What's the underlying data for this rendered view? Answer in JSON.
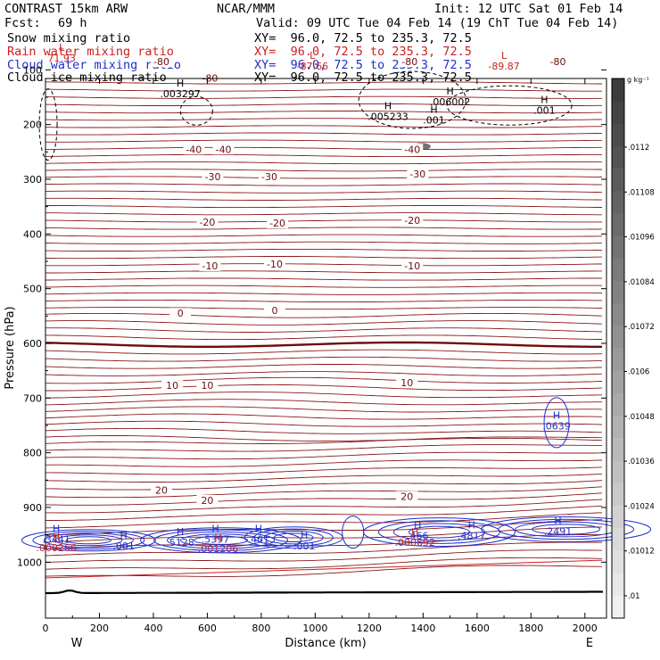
{
  "header": {
    "title": "CONTRAST 15km ARW",
    "org": "NCAR/MMM",
    "init": "Init: 12 UTC Sat 01 Feb 14",
    "fcst_label": "Fcst:",
    "fcst_value": "69 h",
    "valid": "Valid: 09 UTC Tue 04 Feb 14 (19 ChT Tue 04 Feb 14)"
  },
  "fields": [
    {
      "name": "Snow mixing ratio",
      "xy": "XY=  96.0, 72.5 to 235.3, 72.5",
      "color": "#000000"
    },
    {
      "name": "Rain water mixing ratio",
      "xy": "XY=  96.0, 72.5 to 235.3, 72.5",
      "color": "#cc1f1f"
    },
    {
      "name": "Cloud water mixing ratio",
      "xy": "XY=  96.0, 72.5 to 235.3, 72.5",
      "color": "#1f2fcc"
    },
    {
      "name": "Cloud ice mixing ratio",
      "xy": "XY=  96.0, 72.5 to 235.3, 72.5",
      "color": "#000000"
    }
  ],
  "chart_data": {
    "type": "contour-cross-section",
    "xlabel": "Distance (km)",
    "ylabel": "Pressure (hPa)",
    "xlim": [
      0,
      2080
    ],
    "ylim": [
      1050,
      50
    ],
    "x_ticks": [
      0,
      200,
      400,
      600,
      800,
      1000,
      1200,
      1400,
      1600,
      1800,
      2000
    ],
    "y_ticks": [
      100,
      200,
      300,
      400,
      500,
      600,
      700,
      800,
      900,
      1000
    ],
    "endpoints": {
      "left": "W",
      "right": "E"
    },
    "temperature_labels": [
      {
        "text": "-80",
        "x": 430,
        "p": 85
      },
      {
        "text": "-80",
        "x": 1350,
        "p": 85
      },
      {
        "text": "-80",
        "x": 1900,
        "p": 85
      },
      {
        "text": "-80",
        "x": 610,
        "p": 115
      },
      {
        "text": "-40",
        "x": 550,
        "p": 245
      },
      {
        "text": "-40",
        "x": 660,
        "p": 245
      },
      {
        "text": "-40",
        "x": 1360,
        "p": 245
      },
      {
        "text": "-30",
        "x": 620,
        "p": 295
      },
      {
        "text": "-30",
        "x": 830,
        "p": 295
      },
      {
        "text": "-30",
        "x": 1380,
        "p": 290
      },
      {
        "text": "-20",
        "x": 600,
        "p": 378
      },
      {
        "text": "-20",
        "x": 860,
        "p": 380
      },
      {
        "text": "-20",
        "x": 1360,
        "p": 375
      },
      {
        "text": "-10",
        "x": 610,
        "p": 458
      },
      {
        "text": "-10",
        "x": 850,
        "p": 455
      },
      {
        "text": "-10",
        "x": 1360,
        "p": 458
      },
      {
        "text": "0",
        "x": 500,
        "p": 545
      },
      {
        "text": "0",
        "x": 850,
        "p": 540
      },
      {
        "text": "10",
        "x": 470,
        "p": 677
      },
      {
        "text": "10",
        "x": 600,
        "p": 677
      },
      {
        "text": "10",
        "x": 1340,
        "p": 672
      },
      {
        "text": "20",
        "x": 430,
        "p": 868
      },
      {
        "text": "20",
        "x": 600,
        "p": 887
      },
      {
        "text": "20",
        "x": 1340,
        "p": 880
      }
    ],
    "extrema": [
      {
        "kind": "L",
        "value": "71.93",
        "x": 60,
        "p": 75,
        "color": "#cc1f1f"
      },
      {
        "kind": "L",
        "value": "-87.66",
        "x": 990,
        "p": 90,
        "color": "#cc1f1f"
      },
      {
        "kind": "L",
        "value": "-89.87",
        "x": 1700,
        "p": 90,
        "color": "#cc1f1f"
      },
      {
        "kind": "H",
        "value": ".003297",
        "x": 500,
        "p": 140,
        "color": "#000000"
      },
      {
        "kind": "H",
        "value": ".006002",
        "x": 1500,
        "p": 155,
        "color": "#000000"
      },
      {
        "kind": "H",
        "value": ".005233",
        "x": 1270,
        "p": 182,
        "color": "#000000"
      },
      {
        "kind": "H",
        "value": ".001",
        "x": 1440,
        "p": 188,
        "color": "#000000"
      },
      {
        "kind": "H",
        "value": ".001",
        "x": 1850,
        "p": 170,
        "color": "#000000"
      },
      {
        "kind": "H",
        "value": ".0639",
        "x": 1895,
        "p": 748,
        "color": "#1f2fcc"
      },
      {
        "kind": "H",
        "value": ".3441",
        "x": 40,
        "p": 955,
        "color": "#1f2fcc"
      },
      {
        "kind": "H",
        "value": ".000266",
        "x": 40,
        "p": 970,
        "color": "#cc1f1f"
      },
      {
        "kind": "H",
        "value": ".001",
        "x": 290,
        "p": 967,
        "color": "#1f2fcc"
      },
      {
        "kind": "H",
        "value": ".5128",
        "x": 500,
        "p": 960,
        "color": "#1f2fcc"
      },
      {
        "kind": "H",
        "value": ".5397",
        "x": 630,
        "p": 955,
        "color": "#1f2fcc"
      },
      {
        "kind": "H",
        "value": ".001206",
        "x": 640,
        "p": 972,
        "color": "#cc1f1f"
      },
      {
        "kind": "H",
        "value": ".401",
        "x": 790,
        "p": 955,
        "color": "#1f2fcc"
      },
      {
        "kind": "H",
        "value": ".001",
        "x": 960,
        "p": 967,
        "color": "#1f2fcc"
      },
      {
        "kind": "H",
        "value": ".466",
        "x": 1380,
        "p": 948,
        "color": "#1f2fcc"
      },
      {
        "kind": "H",
        "value": ".000692",
        "x": 1370,
        "p": 960,
        "color": "#cc1f1f"
      },
      {
        "kind": "H",
        "value": ".4817",
        "x": 1580,
        "p": 948,
        "color": "#1f2fcc"
      },
      {
        "kind": "H",
        "value": ".2491",
        "x": 1900,
        "p": 940,
        "color": "#1f2fcc"
      }
    ],
    "colorbar": {
      "units": "g kg⁻¹",
      "labels": [
        ".0112",
        ".01108",
        ".01096",
        ".01084",
        ".01072",
        ".0106",
        ".01048",
        ".01036",
        ".01024",
        ".01012",
        ".01"
      ]
    }
  }
}
